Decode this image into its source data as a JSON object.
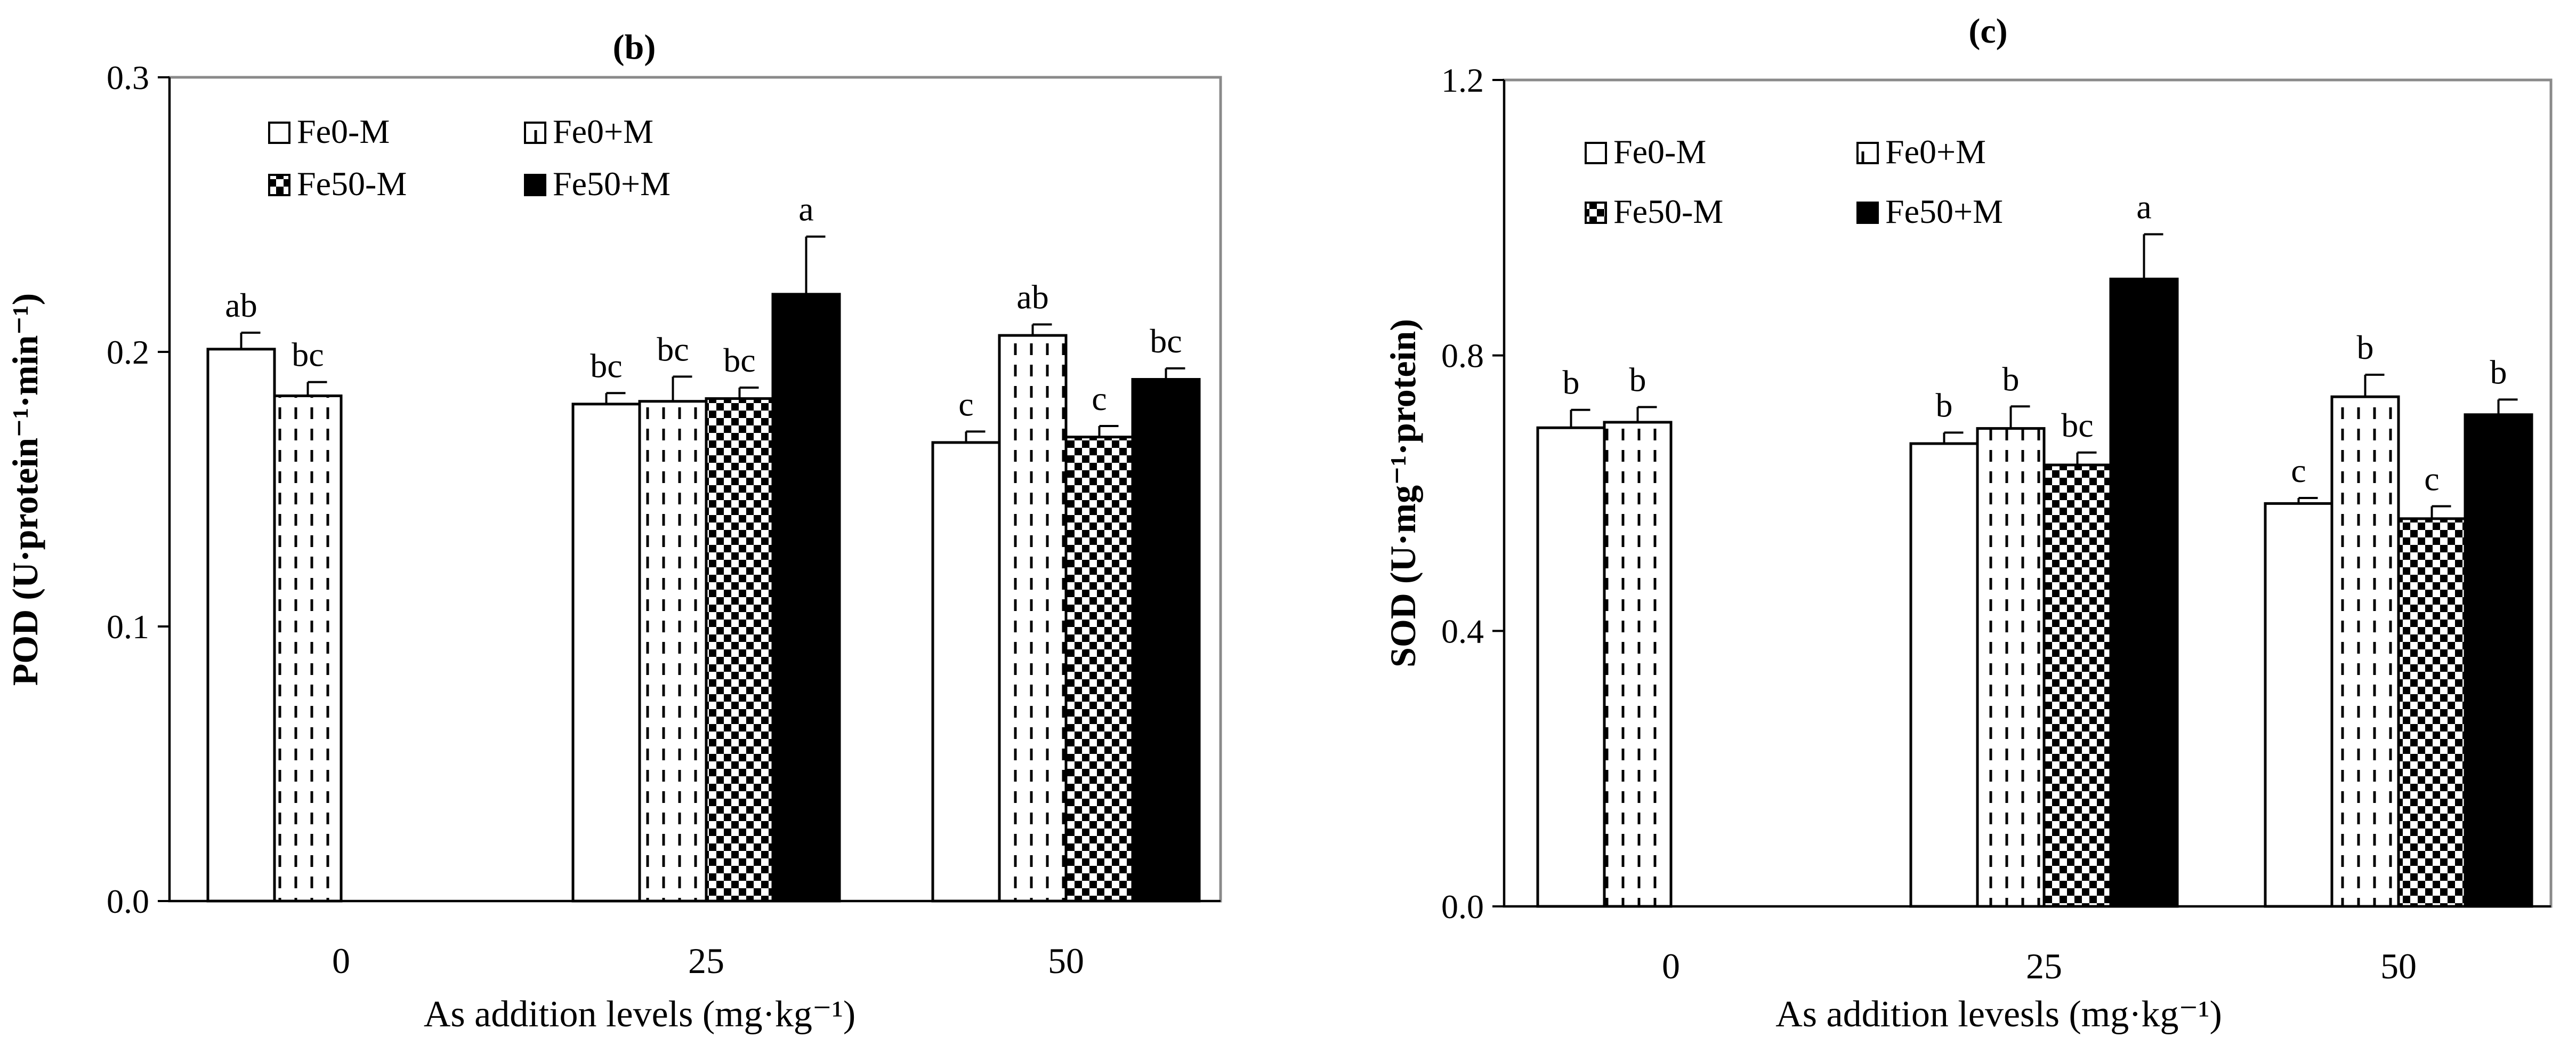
{
  "patterns": {
    "Fe0-M": "white",
    "Fe0+M": "dashes",
    "Fe50-M": "checker",
    "Fe50+M": "black"
  },
  "chart_data": [
    {
      "id": "b",
      "type": "bar",
      "title": "(b)",
      "xlabel": "As addition levels (mg·kg⁻¹)",
      "ylabel": "POD (U·protein⁻¹·min⁻¹)",
      "ylim": [
        0,
        0.3
      ],
      "yticks": [
        0,
        0.1,
        0.2,
        0.3
      ],
      "ytick_labels": [
        "0.0",
        "0.1",
        "0.2",
        "0.3"
      ],
      "categories": [
        "0",
        "25",
        "50"
      ],
      "legend": {
        "placement": "top-left",
        "entries": [
          "Fe0-M",
          "Fe0+M",
          "Fe50-M",
          "Fe50+M"
        ]
      },
      "series": [
        {
          "name": "Fe0-M",
          "values": [
            0.201,
            0.181,
            0.167
          ],
          "errors": [
            0.006,
            0.004,
            0.004
          ],
          "labels": [
            "ab",
            "bc",
            "c"
          ]
        },
        {
          "name": "Fe0+M",
          "values": [
            0.184,
            0.182,
            0.206
          ],
          "errors": [
            0.005,
            0.009,
            0.004
          ],
          "labels": [
            "bc",
            "bc",
            "ab"
          ]
        },
        {
          "name": "Fe50-M",
          "values": [
            null,
            0.183,
            0.169
          ],
          "errors": [
            null,
            0.004,
            0.004
          ],
          "labels": [
            "",
            "bc",
            "c"
          ]
        },
        {
          "name": "Fe50+M",
          "values": [
            null,
            0.221,
            0.19
          ],
          "errors": [
            null,
            0.021,
            0.004
          ],
          "labels": [
            "",
            "a",
            "bc"
          ]
        }
      ]
    },
    {
      "id": "c",
      "type": "bar",
      "title": "(c)",
      "xlabel": "As addition levesls (mg·kg⁻¹)",
      "ylabel": "SOD (U·mg⁻¹·protein)",
      "ylim": [
        0,
        1.2
      ],
      "yticks": [
        0,
        0.4,
        0.8,
        1.2
      ],
      "ytick_labels": [
        "0.0",
        "0.4",
        "0.8",
        "1.2"
      ],
      "categories": [
        "0",
        "25",
        "50"
      ],
      "legend": {
        "placement": "top-left",
        "entries": [
          "Fe0-M",
          "Fe0+M",
          "Fe50-M",
          "Fe50+M"
        ]
      },
      "series": [
        {
          "name": "Fe0-M",
          "values": [
            0.695,
            0.672,
            0.585
          ],
          "errors": [
            0.026,
            0.016,
            0.008
          ],
          "labels": [
            "b",
            "b",
            "c"
          ]
        },
        {
          "name": "Fe0+M",
          "values": [
            0.703,
            0.694,
            0.74
          ],
          "errors": [
            0.022,
            0.032,
            0.032
          ],
          "labels": [
            "b",
            "b",
            "b"
          ]
        },
        {
          "name": "Fe50-M",
          "values": [
            null,
            0.641,
            0.563
          ],
          "errors": [
            null,
            0.018,
            0.018
          ],
          "labels": [
            "",
            "bc",
            "c"
          ]
        },
        {
          "name": "Fe50+M",
          "values": [
            null,
            0.911,
            0.714
          ],
          "errors": [
            null,
            0.065,
            0.022
          ],
          "labels": [
            "",
            "a",
            "b"
          ]
        }
      ]
    }
  ]
}
